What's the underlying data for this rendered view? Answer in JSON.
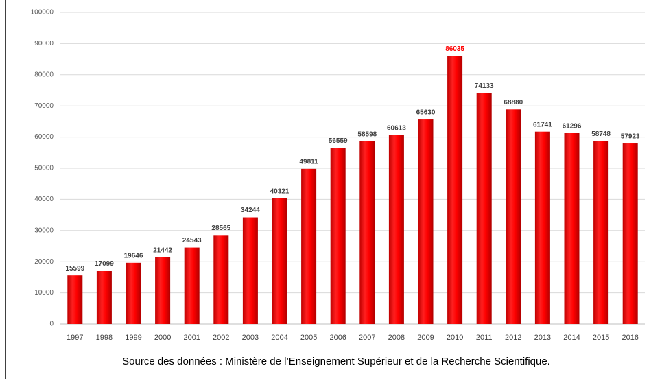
{
  "chart_data": {
    "type": "bar",
    "categories": [
      "1997",
      "1998",
      "1999",
      "2000",
      "2001",
      "2002",
      "2003",
      "2004",
      "2005",
      "2006",
      "2007",
      "2008",
      "2009",
      "2010",
      "2011",
      "2012",
      "2013",
      "2014",
      "2015",
      "2016"
    ],
    "values": [
      15599,
      17099,
      19646,
      21442,
      24543,
      28565,
      34244,
      40321,
      49811,
      56559,
      58598,
      60613,
      65630,
      86035,
      74133,
      68880,
      61741,
      61296,
      58748,
      57923
    ],
    "value_label_colors": [
      "#404040",
      "#404040",
      "#404040",
      "#404040",
      "#404040",
      "#404040",
      "#404040",
      "#404040",
      "#404040",
      "#404040",
      "#404040",
      "#404040",
      "#404040",
      "#ff0000",
      "#404040",
      "#404040",
      "#404040",
      "#404040",
      "#404040",
      "#404040"
    ],
    "color": "#ff0000",
    "ylim": [
      0,
      100000
    ],
    "yticks": [
      0,
      10000,
      20000,
      30000,
      40000,
      50000,
      60000,
      70000,
      80000,
      90000,
      100000
    ],
    "grid": true,
    "source": "Source des données : Ministère de l’Enseignement Supérieur et de la Recherche Scientifique."
  }
}
